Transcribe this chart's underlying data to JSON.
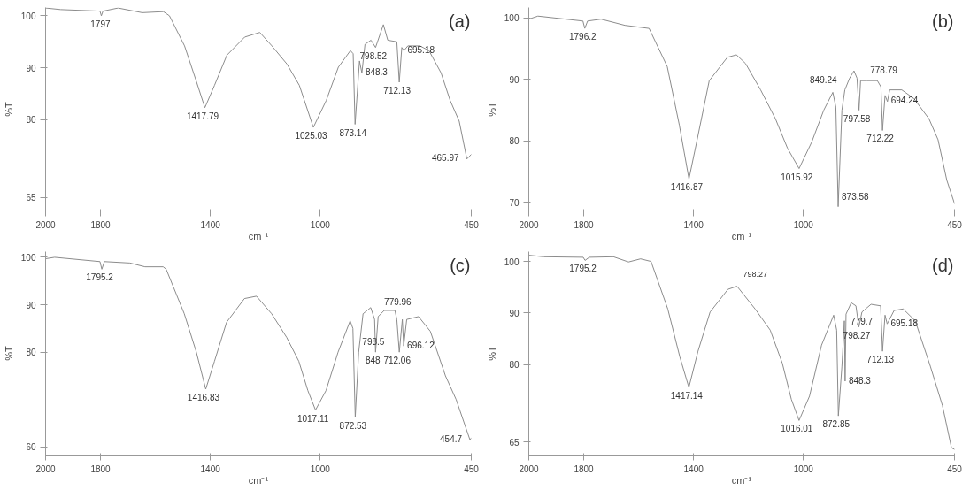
{
  "chart_data": [
    {
      "type": "line",
      "title": "(a)",
      "xlabel": "cm⁻¹",
      "ylabel": "%T",
      "xlim": [
        2000,
        450
      ],
      "ylim": [
        62.4,
        101.6
      ],
      "xticks": [
        2000,
        1800,
        1400,
        1000,
        450
      ],
      "yticks": [
        100,
        90,
        80,
        65
      ],
      "grid": false,
      "series": [
        {
          "color": "#8c8c8c",
          "x": [
            2000,
            1945,
            1802,
            1797,
            1791,
            1736,
            1648,
            1571,
            1549,
            1494,
            1450,
            1420,
            1385,
            1340,
            1275,
            1220,
            1176,
            1121,
            1076,
            1025.03,
            978,
            934,
            890,
            880,
            873.14,
            857,
            848.3,
            837,
            815,
            798.52,
            770,
            754,
            721,
            712.13,
            703,
            695.18,
            681,
            637,
            604,
            560,
            527,
            494,
            465.97,
            450
          ],
          "values": [
            101.5,
            101.2,
            100.9,
            100,
            100.9,
            101.5,
            100.6,
            100.8,
            100,
            94.2,
            87.2,
            82.3,
            86.6,
            92.4,
            95.9,
            96.8,
            94.2,
            90.7,
            86.6,
            78.5,
            83.7,
            90.1,
            93.3,
            92.7,
            79.1,
            91.3,
            89,
            94.5,
            95.3,
            93.9,
            98.3,
            95.3,
            95,
            87.2,
            93.9,
            93.3,
            94.2,
            94.2,
            93.3,
            89,
            83.7,
            79.7,
            72.4,
            73.3
          ]
        }
      ],
      "annotations": [
        {
          "text": "1797",
          "x": 1797,
          "y": 100
        },
        {
          "text": "1417.79",
          "x": 1420,
          "y": 82.3
        },
        {
          "text": "1025.03",
          "x": 1025.03,
          "y": 78.5
        },
        {
          "text": "873.14",
          "x": 873.14,
          "y": 79.1
        },
        {
          "text": "848.3",
          "x": 848.3,
          "y": 89
        },
        {
          "text": "798.52",
          "x": 798.52,
          "y": 93.9
        },
        {
          "text": "712.13",
          "x": 712.13,
          "y": 87.2
        },
        {
          "text": "695.18",
          "x": 695.18,
          "y": 93.3
        },
        {
          "text": "465.97",
          "x": 465.97,
          "y": 72.4
        }
      ]
    },
    {
      "type": "line",
      "title": "(b)",
      "xlabel": "cm⁻¹",
      "ylabel": "%T",
      "xlim": [
        2000,
        450
      ],
      "ylim": [
        68.6,
        101.7
      ],
      "xticks": [
        2000,
        1800,
        1400,
        1000,
        450
      ],
      "yticks": [
        100,
        90,
        80,
        70
      ],
      "grid": false,
      "series": [
        {
          "color": "#8c8c8c",
          "x": [
            2000,
            1967,
            1803,
            1796.2,
            1786,
            1737,
            1650,
            1562,
            1496,
            1452,
            1416.87,
            1387,
            1343,
            1277,
            1244,
            1211,
            1156,
            1102,
            1058,
            1015.92,
            970,
            926,
            893,
            882,
            873.58,
            860,
            849.24,
            832,
            816,
            805,
            797.58,
            792,
            770,
            731,
            718,
            712.22,
            703,
            694.24,
            686,
            642,
            598,
            543,
            510,
            478,
            450
          ],
          "values": [
            99.8,
            100.3,
            99.5,
            98.3,
            99.5,
            99.8,
            98.8,
            98.3,
            92.1,
            82.6,
            73.8,
            80.2,
            89.8,
            93.6,
            94,
            92.6,
            88.3,
            83.6,
            78.8,
            75.5,
            79.8,
            85,
            87.9,
            85.5,
            69.3,
            85,
            88.3,
            90.2,
            91.4,
            90.2,
            85,
            89.8,
            89.8,
            89.8,
            88.8,
            81.7,
            87.4,
            86.4,
            88.3,
            88.3,
            86.9,
            83.6,
            80.2,
            73.6,
            69.8
          ]
        }
      ],
      "annotations": [
        {
          "text": "1796.2",
          "x": 1796.2,
          "y": 98.3
        },
        {
          "text": "1416.87",
          "x": 1416.87,
          "y": 73.8
        },
        {
          "text": "1015.92",
          "x": 1015.92,
          "y": 75.5
        },
        {
          "text": "873.58",
          "x": 873.58,
          "y": 69.3
        },
        {
          "text": "849.24",
          "x": 849.24,
          "y": 88.3
        },
        {
          "text": "797.58",
          "x": 797.58,
          "y": 85
        },
        {
          "text": "778.79",
          "x": 770,
          "y": 89.8
        },
        {
          "text": "712.22",
          "x": 712.22,
          "y": 81.7
        },
        {
          "text": "694.24",
          "x": 694.24,
          "y": 86.4
        }
      ]
    },
    {
      "type": "line",
      "title": "(c)",
      "xlabel": "cm⁻¹",
      "ylabel": "%T",
      "xlim": [
        2000,
        450
      ],
      "ylim": [
        58.3,
        101.2
      ],
      "xticks": [
        2000,
        1800,
        1400,
        1000,
        450
      ],
      "yticks": [
        100,
        90,
        80,
        60
      ],
      "grid": false,
      "series": [
        {
          "color": "#8c8c8c",
          "x": [
            2000,
            1967,
            1802,
            1795.2,
            1786,
            1693,
            1638,
            1572,
            1561,
            1495,
            1451,
            1416.83,
            1385,
            1341,
            1276,
            1232,
            1177,
            1122,
            1078,
            1045,
            1017.11,
            979,
            935,
            891,
            881,
            872.53,
            860,
            844,
            816,
            802,
            798.5,
            789,
            767,
            728,
            721,
            712.06,
            701,
            696.12,
            685,
            642,
            599,
            544,
            505,
            454.7,
            450
          ],
          "values": [
            99.7,
            100,
            99.1,
            97.5,
            99.1,
            98.8,
            98,
            98,
            97.5,
            88.1,
            80,
            72.2,
            78.1,
            86.3,
            91.3,
            91.8,
            88.1,
            83.1,
            78.1,
            71.9,
            67.8,
            71.9,
            80,
            86.6,
            85,
            66.3,
            80,
            88.1,
            89.4,
            86.9,
            80,
            87.5,
            88.8,
            88.8,
            86.9,
            80,
            86.9,
            81.3,
            86.9,
            87.5,
            84.4,
            75,
            70,
            61.5,
            61.9
          ]
        }
      ],
      "annotations": [
        {
          "text": "1795.2",
          "x": 1795.2,
          "y": 97.5
        },
        {
          "text": "1416.83",
          "x": 1416.83,
          "y": 72.2
        },
        {
          "text": "1017.11",
          "x": 1017.11,
          "y": 67.8
        },
        {
          "text": "872.53",
          "x": 872.53,
          "y": 66.3
        },
        {
          "text": "848",
          "x": 848,
          "y": 80
        },
        {
          "text": "798.5",
          "x": 798.5,
          "y": 80
        },
        {
          "text": "779.96",
          "x": 780,
          "y": 88.5
        },
        {
          "text": "712.06",
          "x": 712.06,
          "y": 80
        },
        {
          "text": "696.12",
          "x": 696.12,
          "y": 81.3
        },
        {
          "text": "454.7",
          "x": 454.7,
          "y": 61.5
        }
      ]
    },
    {
      "type": "line",
      "title": "(d)",
      "xlabel": "cm⁻¹",
      "ylabel": "%T",
      "xlim": [
        2000,
        450
      ],
      "ylim": [
        62.5,
        101.9
      ],
      "xticks": [
        2000,
        1800,
        1400,
        1000,
        450
      ],
      "yticks": [
        100,
        90,
        80,
        65
      ],
      "grid": false,
      "series": [
        {
          "color": "#8c8c8c",
          "x": [
            2000,
            1945,
            1802,
            1795.2,
            1780,
            1692,
            1637,
            1593,
            1555,
            1494,
            1450,
            1417.14,
            1384,
            1340,
            1275,
            1242,
            1176,
            1121,
            1077,
            1044,
            1016.01,
            978,
            934,
            890,
            879,
            872.85,
            860,
            851,
            848.3,
            845,
            826,
            809,
            798.27,
            787,
            754,
            719,
            712.13,
            703,
            695.18,
            670,
            637,
            593,
            538,
            494,
            461,
            450
          ],
          "values": [
            101.2,
            100.9,
            100.8,
            100.2,
            100.8,
            100.9,
            99.9,
            100.5,
            100,
            90.8,
            81.5,
            75.6,
            82.6,
            90.2,
            94.6,
            95.2,
            90.8,
            86.7,
            80.3,
            73.3,
            69.2,
            73.9,
            83.8,
            89.6,
            86.7,
            70.1,
            79.7,
            88.5,
            76.8,
            89.8,
            92,
            91.4,
            87.3,
            90.2,
            91.7,
            91.4,
            82.6,
            89.6,
            87.9,
            90.5,
            90.8,
            88.5,
            79.7,
            72.1,
            63.9,
            63.6
          ]
        }
      ],
      "annotations": [
        "798.27",
        {
          "text": "1795.2",
          "x": 1795.2,
          "y": 100.2
        },
        {
          "text": "1417.14",
          "x": 1417.14,
          "y": 75.6
        },
        {
          "text": "1016.01",
          "x": 1016.01,
          "y": 69.2
        },
        {
          "text": "872.85",
          "x": 872.85,
          "y": 70.1
        },
        {
          "text": "848.3",
          "x": 848.3,
          "y": 76.8
        },
        {
          "text": "798.27",
          "x": 798.27,
          "y": 87.3
        },
        {
          "text": "779.7",
          "x": 780,
          "y": 90
        },
        {
          "text": "712.13",
          "x": 712.13,
          "y": 82.6
        },
        {
          "text": "695.18",
          "x": 695.18,
          "y": 87.9
        }
      ]
    }
  ]
}
